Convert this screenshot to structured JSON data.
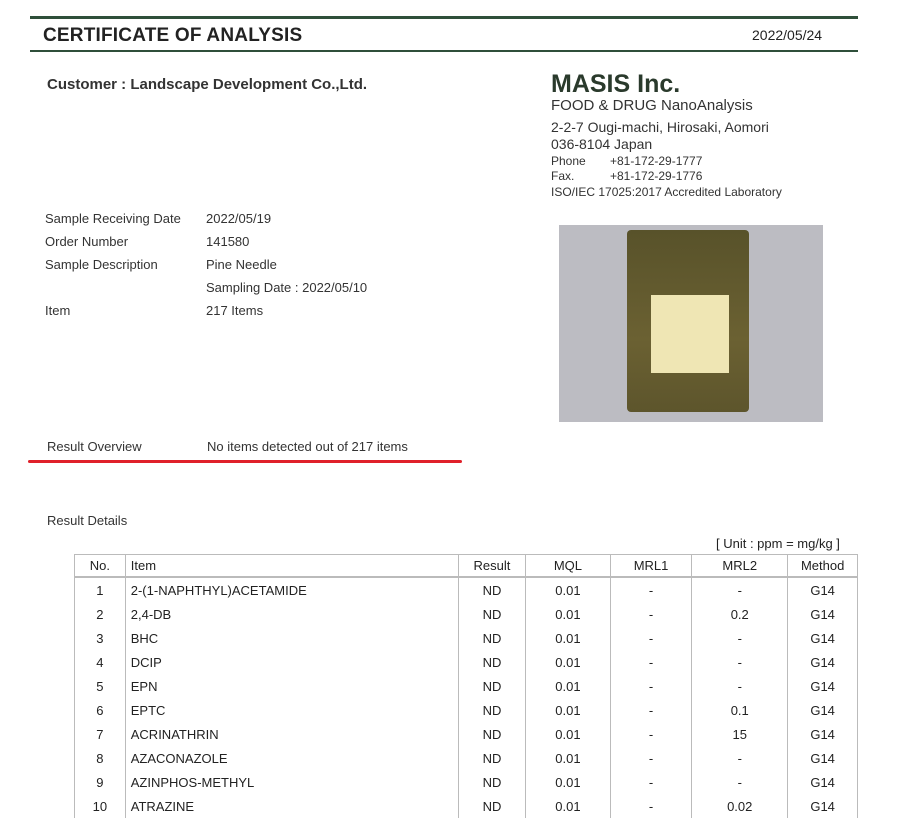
{
  "header": {
    "title": "CERTIFICATE OF ANALYSIS",
    "date": "2022/05/24"
  },
  "customer": "Customer : Landscape Development Co.,Ltd.",
  "company": {
    "name": "MASIS Inc.",
    "subtitle": "FOOD & DRUG NanoAnalysis",
    "address1": "2-2-7 Ougi-machi, Hirosaki, Aomori",
    "address2": "036-8104  Japan",
    "phone_label": "Phone",
    "phone": "+81-172-29-1777",
    "fax_label": "Fax.",
    "fax": "+81-172-29-1776",
    "accreditation": "ISO/IEC 17025:2017  Accredited Laboratory"
  },
  "sample": {
    "receiving_label": "Sample Receiving Date",
    "receiving": "2022/05/19",
    "order_label": "Order Number",
    "order": "141580",
    "desc_label": "Sample Description",
    "desc": "Pine Needle",
    "sampling": "Sampling Date : 2022/05/10",
    "item_label": "Item",
    "item": "217 Items"
  },
  "overview": {
    "label": "Result Overview",
    "value": "No items detected out of 217 items"
  },
  "details": {
    "label": "Result Details",
    "unit": "[ Unit : ppm = mg/kg ]",
    "columns": [
      "No.",
      "Item",
      "Result",
      "MQL",
      "MRL1",
      "MRL2",
      "Method"
    ],
    "rows": [
      [
        "1",
        "2-(1-NAPHTHYL)ACETAMIDE",
        "ND",
        "0.01",
        "-",
        "-",
        "G14"
      ],
      [
        "2",
        "2,4-DB",
        "ND",
        "0.01",
        "-",
        "0.2",
        "G14"
      ],
      [
        "3",
        "BHC",
        "ND",
        "0.01",
        "-",
        "-",
        "G14"
      ],
      [
        "4",
        "DCIP",
        "ND",
        "0.01",
        "-",
        "-",
        "G14"
      ],
      [
        "5",
        "EPN",
        "ND",
        "0.01",
        "-",
        "-",
        "G14"
      ],
      [
        "6",
        "EPTC",
        "ND",
        "0.01",
        "-",
        "0.1",
        "G14"
      ],
      [
        "7",
        "ACRINATHRIN",
        "ND",
        "0.01",
        "-",
        "15",
        "G14"
      ],
      [
        "8",
        "AZACONAZOLE",
        "ND",
        "0.01",
        "-",
        "-",
        "G14"
      ],
      [
        "9",
        "AZINPHOS-METHYL",
        "ND",
        "0.01",
        "-",
        "-",
        "G14"
      ],
      [
        "10",
        "ATRAZINE",
        "ND",
        "0.01",
        "-",
        "0.02",
        "G14"
      ]
    ]
  }
}
